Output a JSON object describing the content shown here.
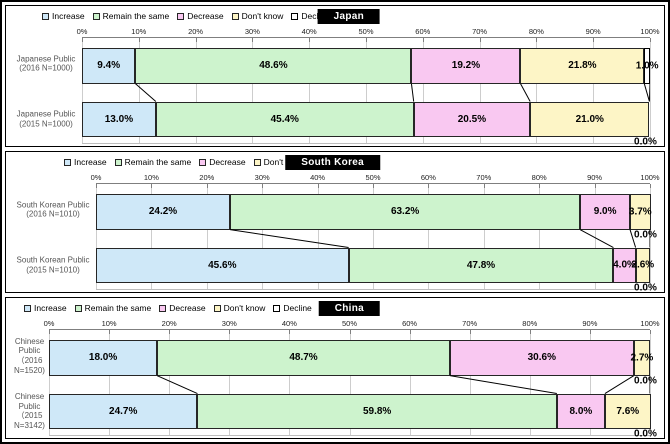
{
  "figure": {
    "legend_items": [
      {
        "name": "increase",
        "label": "Increase",
        "fill": "#cfe8f8",
        "border": "#262626"
      },
      {
        "name": "remain-the-same",
        "label": "Remain the same",
        "fill": "#cdf3cd",
        "border": "#262626"
      },
      {
        "name": "decrease",
        "label": "Decrease",
        "fill": "#f9c8f1",
        "border": "#262626"
      },
      {
        "name": "dont-know",
        "label": "Don't know",
        "fill": "#fdf5c6",
        "border": "#262626"
      },
      {
        "name": "decline",
        "label": "Decline",
        "fill": "#ffffff",
        "border": "#000000"
      }
    ],
    "axis_ticks": [
      "0%",
      "10%",
      "20%",
      "30%",
      "40%",
      "50%",
      "60%",
      "70%",
      "80%",
      "90%",
      "100%"
    ]
  },
  "chart_data": [
    {
      "type": "bar",
      "variant": "horizontal-stacked-percent",
      "title": "Japan",
      "xlim": [
        0,
        100
      ],
      "grid": true,
      "legend_position": "top-left",
      "categories": [
        "Japanese Public (2016 N=1000)",
        "Japanese Public (2015 N=1000)"
      ],
      "category_lines": [
        [
          "Japanese Public",
          "(2016 N=1000)"
        ],
        [
          "Japanese Public",
          "(2015 N=1000)"
        ]
      ],
      "series": [
        {
          "name": "Increase",
          "values": [
            9.4,
            13.0
          ]
        },
        {
          "name": "Remain the same",
          "values": [
            48.6,
            45.4
          ]
        },
        {
          "name": "Decrease",
          "values": [
            19.2,
            20.5
          ]
        },
        {
          "name": "Don't know",
          "values": [
            21.8,
            21.0
          ]
        },
        {
          "name": "Decline",
          "values": [
            1.0,
            0.0
          ]
        }
      ]
    },
    {
      "type": "bar",
      "variant": "horizontal-stacked-percent",
      "title": "South Korea",
      "xlim": [
        0,
        100
      ],
      "grid": true,
      "legend_position": "top-left",
      "categories": [
        "South Korean Public (2016 N=1010)",
        "South Korean Public (2015 N=1010)"
      ],
      "category_lines": [
        [
          "South Korean Public",
          "(2016 N=1010)"
        ],
        [
          "South Korean Public",
          "(2015 N=1010)"
        ]
      ],
      "series": [
        {
          "name": "Increase",
          "values": [
            24.2,
            45.6
          ]
        },
        {
          "name": "Remain the same",
          "values": [
            63.2,
            47.8
          ]
        },
        {
          "name": "Decrease",
          "values": [
            9.0,
            4.0
          ]
        },
        {
          "name": "Don't know",
          "values": [
            3.7,
            2.6
          ]
        },
        {
          "name": "Decline",
          "values": [
            0.0,
            0.0
          ]
        }
      ]
    },
    {
      "type": "bar",
      "variant": "horizontal-stacked-percent",
      "title": "China",
      "xlim": [
        0,
        100
      ],
      "grid": true,
      "legend_position": "top-left",
      "categories": [
        "Chinese Public （2016 N=1520)",
        "Chinese Public （2015 N=3142)"
      ],
      "category_lines": [
        [
          "Chinese",
          "Public",
          "（2016",
          "N=1520)"
        ],
        [
          "Chinese",
          "Public",
          "（2015",
          "N=3142)"
        ]
      ],
      "series": [
        {
          "name": "Increase",
          "values": [
            18.0,
            24.7
          ]
        },
        {
          "name": "Remain the same",
          "values": [
            48.7,
            59.8
          ]
        },
        {
          "name": "Decrease",
          "values": [
            30.6,
            8.0
          ]
        },
        {
          "name": "Don't know",
          "values": [
            2.7,
            7.6
          ]
        },
        {
          "name": "Decline",
          "values": [
            0.0,
            0.0
          ]
        }
      ]
    }
  ]
}
